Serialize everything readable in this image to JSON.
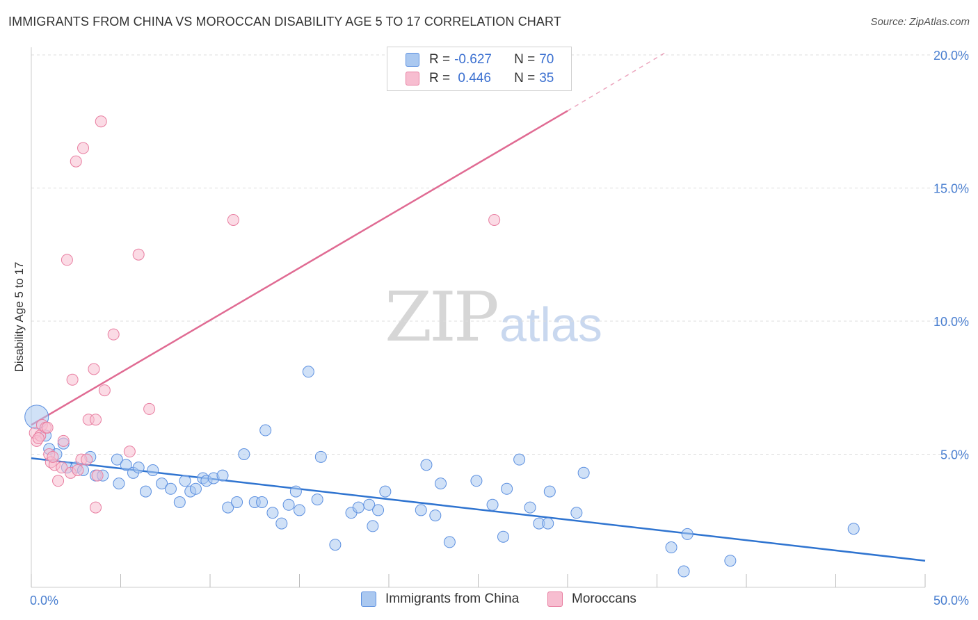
{
  "title": "IMMIGRANTS FROM CHINA VS MOROCCAN DISABILITY AGE 5 TO 17 CORRELATION CHART",
  "source": "Source: ZipAtlas.com",
  "watermark": {
    "zip": "ZIP",
    "atlas": "atlas"
  },
  "legend": {
    "rows": [
      {
        "r_label": "R = ",
        "r_value": "-0.627",
        "n_label": "N = ",
        "n_value": "70",
        "color": "#aac8f0"
      },
      {
        "r_label": "R = ",
        "r_value": " 0.446",
        "n_label": "N = ",
        "n_value": "35",
        "color": "#f7bdd0"
      }
    ]
  },
  "chart_data": {
    "type": "scatter",
    "title": "IMMIGRANTS FROM CHINA VS MOROCCAN DISABILITY AGE 5 TO 17 CORRELATION CHART",
    "xlabel": "",
    "ylabel": "Disability Age 5 to 17",
    "xlim": [
      0,
      50
    ],
    "ylim": [
      0,
      21
    ],
    "x_tick_labels": [
      "0.0%",
      "50.0%"
    ],
    "y_ticks": [
      5,
      10,
      15,
      20
    ],
    "y_tick_labels": [
      "5.0%",
      "10.0%",
      "15.0%",
      "20.0%"
    ],
    "grid": true,
    "legend_position": "top-center",
    "series": [
      {
        "name": "Immigrants from China",
        "color": "#5b8fe0",
        "fill": "#aac8f0",
        "trend": {
          "x0": 0,
          "y0": 4.85,
          "x1": 50,
          "y1": 1.0
        },
        "points": [
          [
            0.3,
            6.4
          ],
          [
            0.8,
            5.7
          ],
          [
            1.0,
            5.2
          ],
          [
            1.4,
            5.0
          ],
          [
            1.8,
            5.4
          ],
          [
            2.0,
            4.5
          ],
          [
            2.5,
            4.5
          ],
          [
            2.9,
            4.4
          ],
          [
            3.3,
            4.9
          ],
          [
            3.6,
            4.2
          ],
          [
            4.0,
            4.2
          ],
          [
            4.8,
            4.8
          ],
          [
            4.9,
            3.9
          ],
          [
            5.3,
            4.6
          ],
          [
            5.7,
            4.3
          ],
          [
            6.0,
            4.5
          ],
          [
            6.4,
            3.6
          ],
          [
            6.8,
            4.4
          ],
          [
            7.3,
            3.9
          ],
          [
            7.8,
            3.7
          ],
          [
            8.3,
            3.2
          ],
          [
            8.6,
            4.0
          ],
          [
            8.9,
            3.6
          ],
          [
            9.2,
            3.7
          ],
          [
            9.6,
            4.1
          ],
          [
            9.8,
            4.0
          ],
          [
            10.2,
            4.1
          ],
          [
            10.7,
            4.2
          ],
          [
            11.0,
            3.0
          ],
          [
            11.5,
            3.2
          ],
          [
            11.9,
            5.0
          ],
          [
            12.5,
            3.2
          ],
          [
            12.9,
            3.2
          ],
          [
            13.1,
            5.9
          ],
          [
            13.5,
            2.8
          ],
          [
            14.0,
            2.4
          ],
          [
            14.4,
            3.1
          ],
          [
            14.8,
            3.6
          ],
          [
            15.0,
            2.9
          ],
          [
            15.5,
            8.1
          ],
          [
            16.0,
            3.3
          ],
          [
            16.2,
            4.9
          ],
          [
            17.0,
            1.6
          ],
          [
            17.9,
            2.8
          ],
          [
            18.3,
            3.0
          ],
          [
            18.9,
            3.1
          ],
          [
            19.1,
            2.3
          ],
          [
            19.4,
            2.9
          ],
          [
            19.8,
            3.6
          ],
          [
            21.8,
            2.9
          ],
          [
            22.1,
            4.6
          ],
          [
            22.6,
            2.7
          ],
          [
            22.9,
            3.9
          ],
          [
            23.4,
            1.7
          ],
          [
            24.9,
            4.0
          ],
          [
            25.8,
            3.1
          ],
          [
            26.4,
            1.9
          ],
          [
            26.6,
            3.7
          ],
          [
            27.3,
            4.8
          ],
          [
            27.9,
            3.0
          ],
          [
            28.4,
            2.4
          ],
          [
            28.9,
            2.4
          ],
          [
            29.0,
            3.6
          ],
          [
            30.5,
            2.8
          ],
          [
            30.9,
            4.3
          ],
          [
            35.8,
            1.5
          ],
          [
            36.5,
            0.6
          ],
          [
            36.7,
            2.0
          ],
          [
            39.1,
            1.0
          ],
          [
            46.0,
            2.2
          ]
        ]
      },
      {
        "name": "Moroccans",
        "color": "#e87da0",
        "fill": "#f7bdd0",
        "trend": {
          "x0": 0,
          "y0": 6.1,
          "x1": 30.0,
          "y1": 17.9,
          "dash_to_x": 35.5,
          "dash_to_y": 20.1
        },
        "points": [
          [
            0.2,
            5.8
          ],
          [
            0.3,
            5.5
          ],
          [
            0.5,
            5.7
          ],
          [
            0.6,
            6.1
          ],
          [
            0.8,
            6.0
          ],
          [
            1.0,
            5.0
          ],
          [
            1.1,
            4.7
          ],
          [
            1.3,
            4.6
          ],
          [
            1.5,
            4.0
          ],
          [
            1.7,
            4.5
          ],
          [
            1.8,
            5.5
          ],
          [
            2.0,
            12.3
          ],
          [
            2.2,
            4.3
          ],
          [
            2.3,
            7.8
          ],
          [
            2.5,
            16.0
          ],
          [
            2.8,
            4.8
          ],
          [
            2.9,
            16.5
          ],
          [
            3.1,
            4.8
          ],
          [
            3.2,
            6.3
          ],
          [
            3.5,
            8.2
          ],
          [
            3.6,
            6.3
          ],
          [
            3.6,
            3.0
          ],
          [
            3.7,
            4.2
          ],
          [
            3.9,
            17.5
          ],
          [
            4.1,
            7.4
          ],
          [
            4.6,
            9.5
          ],
          [
            5.5,
            5.1
          ],
          [
            6.0,
            12.5
          ],
          [
            6.6,
            6.7
          ],
          [
            11.3,
            13.8
          ],
          [
            25.9,
            13.8
          ],
          [
            0.4,
            5.6
          ],
          [
            1.2,
            4.9
          ],
          [
            2.6,
            4.4
          ],
          [
            0.9,
            6.0
          ]
        ]
      }
    ]
  }
}
